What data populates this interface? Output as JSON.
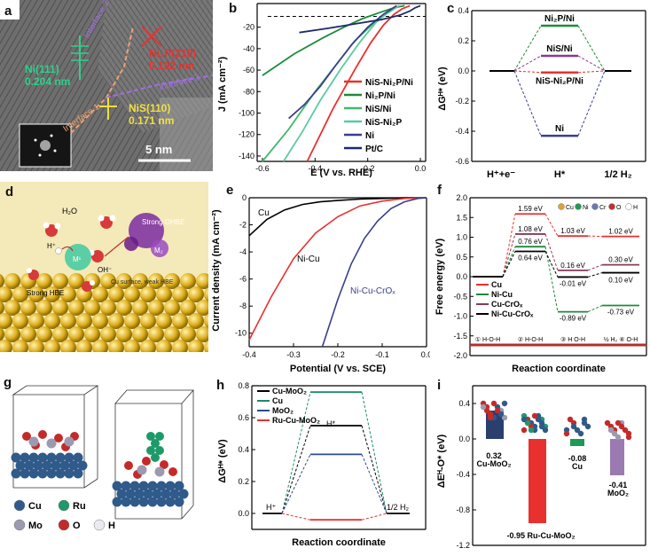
{
  "figure": {
    "a": {
      "label": "a",
      "annotations": {
        "ni111": "Ni(111)",
        "ni111_d": "0.204 nm",
        "ni2p": "Ni₂P(210)",
        "ni2p_d": "0.192 nm",
        "nis": "NiS(110)",
        "nis_d": "0.171 nm",
        "if1": "Interface 1",
        "if2": "Interface 2",
        "if3": "Interface 3",
        "scale": "5 nm"
      }
    },
    "b": {
      "label": "b",
      "chart_data": {
        "type": "line",
        "xlabel": "E (V vs. RHE)",
        "ylabel": "J (mA cm⁻²)",
        "xlim": [
          -0.62,
          0.02
        ],
        "ylim": [
          -145,
          2
        ],
        "xticks": [
          "-0.6",
          "-0.4",
          "-0.2",
          "0.0"
        ],
        "yticks": [
          "-20",
          "-40",
          "-60",
          "-80",
          "-100",
          "-120",
          "-140"
        ],
        "series": [
          {
            "name": "NiS-Ni₂P/Ni",
            "color": "#e8312f",
            "x": [
              -0.43,
              -0.33,
              -0.25,
              -0.19,
              -0.14,
              -0.1,
              -0.07,
              -0.04
            ],
            "y": [
              -145,
              -95,
              -60,
              -35,
              -18,
              -8,
              -3,
              0
            ]
          },
          {
            "name": "Ni₂P/Ni",
            "color": "#1d8a3b",
            "x": [
              -0.6,
              -0.48,
              -0.37,
              -0.29,
              -0.22,
              -0.15,
              -0.1,
              -0.06
            ],
            "y": [
              -65,
              -45,
              -30,
              -20,
              -12,
              -6,
              -2,
              0
            ]
          },
          {
            "name": "NiS/Ni",
            "color": "#44b86a",
            "x": [
              -0.6,
              -0.5,
              -0.4,
              -0.32,
              -0.25,
              -0.18,
              -0.12,
              -0.08
            ],
            "y": [
              -145,
              -115,
              -80,
              -55,
              -33,
              -17,
              -6,
              0
            ]
          },
          {
            "name": "NiS-Ni₂P",
            "color": "#5dcaa0",
            "x": [
              -0.52,
              -0.45,
              -0.38,
              -0.3,
              -0.23,
              -0.17,
              -0.12,
              -0.08
            ],
            "y": [
              -145,
              -118,
              -88,
              -58,
              -34,
              -16,
              -5,
              0
            ]
          },
          {
            "name": "Ni",
            "color": "#3a3f8c",
            "x": [
              -0.5,
              -0.44,
              -0.38,
              -0.32,
              -0.26,
              -0.2,
              -0.14,
              -0.09
            ],
            "y": [
              -105,
              -92,
              -75,
              -55,
              -36,
              -20,
              -8,
              0
            ]
          },
          {
            "name": "Pt/C",
            "color": "#1f2a66",
            "x": [
              -0.46,
              -0.35,
              -0.25,
              -0.15,
              -0.08,
              -0.04,
              -0.02,
              0.0
            ],
            "y": [
              -25,
              -21,
              -17,
              -13,
              -9,
              -5,
              -2,
              0
            ]
          }
        ],
        "reference_line": -10
      }
    },
    "c": {
      "label": "c",
      "chart_data": {
        "type": "line",
        "ylabel": "ΔGᴴ* (eV)",
        "ylim": [
          -0.6,
          0.4
        ],
        "yticks": [
          "0.4",
          "0.2",
          "0.0",
          "-0.2",
          "-0.4",
          "-0.6"
        ],
        "xcategories": [
          "H⁺+e⁻",
          "H*",
          "1/2 H₂"
        ],
        "levels": [
          {
            "name": "Ni₂P/Ni",
            "value": 0.3,
            "color": "#1d8a3b"
          },
          {
            "name": "NiS/Ni",
            "value": 0.1,
            "color": "#8a3a8a"
          },
          {
            "name": "NiS-Ni₂P/Ni",
            "value": -0.01,
            "color": "#e8312f"
          },
          {
            "name": "Ni",
            "value": -0.43,
            "color": "#3a3f8c"
          }
        ]
      }
    },
    "d": {
      "label": "d",
      "annotations": {
        "h2o": "H₂O",
        "h": "H⁺",
        "oh": "OH⁻",
        "strong_ohbe": "Strong OHBE",
        "m1": "M¹",
        "m2": "M₂",
        "strong_hbe": "Strong HBE",
        "cu_surface": "Cu surface, weak HBE"
      }
    },
    "e": {
      "label": "e",
      "chart_data": {
        "type": "line",
        "xlabel": "Potential (V vs. SCE)",
        "ylabel": "Current density (mA cm⁻²)",
        "xlim": [
          -0.4,
          0.0
        ],
        "ylim": [
          -11,
          0
        ],
        "xticks": [
          "-0.4",
          "-0.3",
          "-0.2",
          "-0.1",
          "0.0"
        ],
        "yticks": [
          "0",
          "-2",
          "-4",
          "-6",
          "-8",
          "-10"
        ],
        "series": [
          {
            "name": "Cu",
            "color": "#000000",
            "x": [
              -0.4,
              -0.36,
              -0.32,
              -0.28,
              -0.24,
              -0.2,
              -0.15,
              -0.1,
              -0.05,
              0.0
            ],
            "y": [
              -2.8,
              -1.6,
              -0.9,
              -0.5,
              -0.3,
              -0.2,
              -0.1,
              -0.05,
              0,
              0
            ]
          },
          {
            "name": "Ni-Cu",
            "color": "#e8312f",
            "x": [
              -0.4,
              -0.35,
              -0.3,
              -0.25,
              -0.2,
              -0.15,
              -0.1,
              -0.05,
              0.0
            ],
            "y": [
              -10.5,
              -7.3,
              -4.5,
              -2.6,
              -1.4,
              -0.6,
              -0.25,
              -0.05,
              0
            ]
          },
          {
            "name": "Ni-Cu-CrOₓ",
            "color": "#3a3f8c",
            "x": [
              -0.235,
              -0.2,
              -0.17,
              -0.14,
              -0.11,
              -0.08,
              -0.05,
              -0.02,
              0.0
            ],
            "y": [
              -11,
              -7.5,
              -4.9,
              -3.0,
              -1.7,
              -0.8,
              -0.3,
              -0.05,
              0
            ]
          }
        ]
      }
    },
    "f": {
      "label": "f",
      "chart_data": {
        "type": "line",
        "ylabel": "Free energy (eV)",
        "xlabel": "Reaction coordinate",
        "ylim": [
          -2.0,
          2.0
        ],
        "yticks": [
          "2.0",
          "1.5",
          "1.0",
          "0.5",
          "0.0",
          "-0.5",
          "-1.0",
          "-1.5",
          "-2.0"
        ],
        "states": [
          "① H-O-H",
          "② H-O-H",
          "③ H O-H",
          "½ H₂ ④ O-H"
        ],
        "series": [
          {
            "name": "Cu",
            "color": "#e8312f",
            "values": [
              0,
              1.59,
              1.03,
              1.02
            ],
            "labels": [
              "",
              "1.59 eV",
              "1.03 eV",
              "1.02 eV"
            ]
          },
          {
            "name": "Ni-Cu",
            "color": "#1d8a3b",
            "values": [
              0,
              0.76,
              -0.89,
              -0.73
            ],
            "labels": [
              "",
              "0.76 eV",
              "-0.89 eV",
              "-0.73 eV"
            ]
          },
          {
            "name": "Cu-CrOₓ",
            "color": "#8a3a5a",
            "values": [
              0,
              1.08,
              0.16,
              0.3
            ],
            "labels": [
              "",
              "1.08 eV",
              "0.16 eV",
              "0.30 eV"
            ]
          },
          {
            "name": "Ni-Cu-CrOₓ",
            "color": "#000000",
            "values": [
              0,
              0.64,
              -0.01,
              0.1
            ],
            "labels": [
              "",
              "0.64 eV",
              "-0.01 eV",
              "0.10 eV"
            ]
          }
        ],
        "atom_legend": [
          "Cu",
          "Ni",
          "Cr",
          "O",
          "H"
        ]
      }
    },
    "g": {
      "label": "g",
      "legend": [
        "Cu",
        "Ru",
        "Mo",
        "O",
        "H"
      ]
    },
    "h": {
      "label": "h",
      "chart_data": {
        "type": "line",
        "ylabel": "ΔGᴴ* (eV)",
        "xlabel": "Reaction coordinate",
        "ylim": [
          -0.1,
          0.8
        ],
        "yticks": [
          "0.8",
          "0.6",
          "0.4",
          "0.2",
          "0.0"
        ],
        "state_labels": [
          "H⁺",
          "H*",
          "1/2 H₂"
        ],
        "levels": [
          {
            "name": "Cu-MoO₂",
            "value": 0.55,
            "color": "#000000"
          },
          {
            "name": "Cu",
            "value": 0.76,
            "color": "#1d8a6a"
          },
          {
            "name": "MoO₂",
            "value": 0.37,
            "color": "#2a4d8a"
          },
          {
            "name": "Ru-Cu-MoO₂",
            "value": -0.04,
            "color": "#e8312f"
          }
        ]
      }
    },
    "i": {
      "label": "i",
      "chart_data": {
        "type": "bar",
        "ylabel": "ΔEᴴ-O* (eV)",
        "ylim": [
          -1.2,
          0.6
        ],
        "yticks": [
          "0.4",
          "0.0",
          "-0.4",
          "-0.8",
          "-1.2"
        ],
        "categories": [
          "Cu-MoO₂",
          "Ru-Cu-MoO₂",
          "Cu",
          "MoO₂"
        ],
        "values": [
          0.32,
          -0.95,
          -0.08,
          -0.41
        ],
        "colors": [
          "#2b3f6e",
          "#e8312f",
          "#1d9a55",
          "#9a7ab0"
        ],
        "value_labels": [
          "0.32",
          "-0.95",
          "-0.08",
          "-0.41"
        ]
      }
    }
  }
}
